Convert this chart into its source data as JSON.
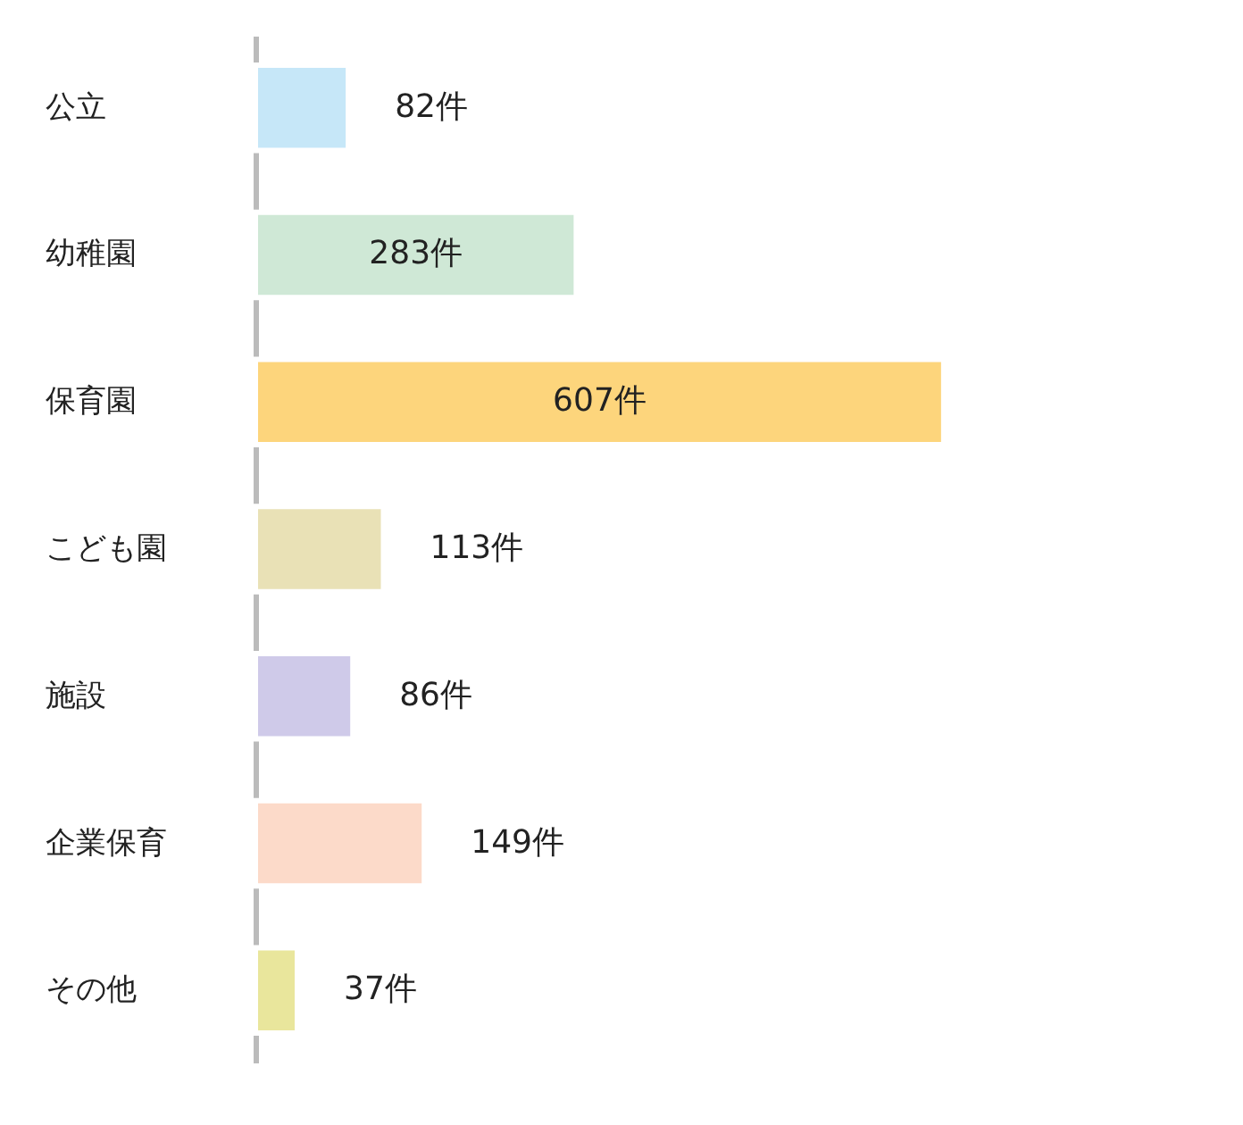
{
  "chart_data": {
    "type": "bar",
    "orientation": "horizontal",
    "categories": [
      "公立",
      "幼稚園",
      "保育園",
      "こども園",
      "施設",
      "企業保育",
      "その他"
    ],
    "values": [
      82,
      283,
      607,
      113,
      86,
      149,
      37
    ],
    "value_labels": [
      "82件",
      "283件",
      "607件",
      "113件",
      "86件",
      "149件",
      "37件"
    ],
    "colors": [
      "#c6e7f8",
      "#cfe8d6",
      "#fdd57c",
      "#e9e1b6",
      "#cfcae9",
      "#fcdac9",
      "#e9e69c"
    ],
    "grid": false,
    "legend": false
  }
}
